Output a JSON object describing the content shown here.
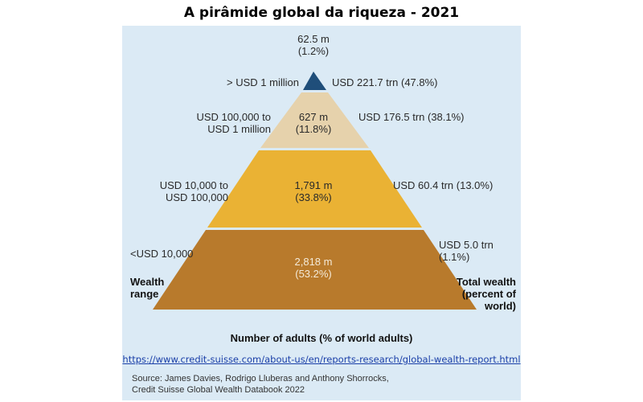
{
  "title": "A pirâmide global da riqueza - 2021",
  "colors": {
    "panel": "#dbeaf5",
    "tier_top": "#1f4e7a",
    "tier_2": "#e6d2ac",
    "tier_3": "#eab234",
    "tier_4": "#b87a2c"
  },
  "tiers": [
    {
      "range_line1": "> USD 1 million",
      "range_line2": "",
      "adults": "62.5 m",
      "adults_pct": "(1.2%)",
      "wealth_line1": "USD 221.7 trn (47.8%)",
      "wealth_line2": ""
    },
    {
      "range_line1": "USD 100,000 to",
      "range_line2": "USD 1 million",
      "adults": "627 m",
      "adults_pct": "(11.8%)",
      "wealth_line1": "USD 176.5 trn (38.1%)",
      "wealth_line2": ""
    },
    {
      "range_line1": "USD 10,000 to",
      "range_line2": "USD 100,000",
      "adults": "1,791 m",
      "adults_pct": "(33.8%)",
      "wealth_line1": "USD 60.4 trn (13.0%)",
      "wealth_line2": ""
    },
    {
      "range_line1": "<USD 10,000",
      "range_line2": "",
      "adults": "2,818 m",
      "adults_pct": "(53.2%)",
      "wealth_line1": "USD 5.0 trn",
      "wealth_line2": "(1.1%)"
    }
  ],
  "left_axis_label": {
    "line1": "Wealth",
    "line2": "range"
  },
  "right_axis_label": {
    "line1": "Total wealth",
    "line2": "(percent of",
    "line3": "world)"
  },
  "adults_axis_label": "Number of adults (% of world adults)",
  "link": "https://www.credit-suisse.com/about-us/en/reports-research/global-wealth-report.html",
  "source": {
    "line1": "Source: James Davies, Rodrigo Lluberas and Anthony Shorrocks,",
    "line2": "Credit Suisse Global Wealth Databook 2022"
  }
}
